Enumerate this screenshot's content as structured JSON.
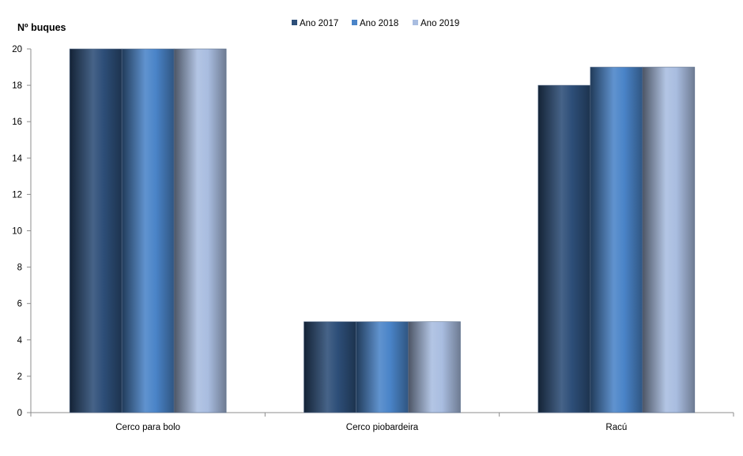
{
  "chart_data": {
    "type": "bar",
    "title": "",
    "ylabel": "Nº  buques",
    "xlabel": "",
    "categories": [
      "Cerco para bolo",
      "Cerco piobardeira",
      "Racú"
    ],
    "series": [
      {
        "name": "Ano 2017",
        "values": [
          20,
          5,
          18
        ],
        "color": "#2d4e78"
      },
      {
        "name": "Ano 2018",
        "values": [
          20,
          5,
          19
        ],
        "color": "#4a84c8"
      },
      {
        "name": "Ano 2019",
        "values": [
          20,
          5,
          19
        ],
        "color": "#a9bde0"
      }
    ],
    "ylim": [
      0,
      20
    ],
    "yticks": [
      0,
      2,
      4,
      6,
      8,
      10,
      12,
      14,
      16,
      18,
      20
    ],
    "grid": false,
    "legend_position": "top-center"
  }
}
